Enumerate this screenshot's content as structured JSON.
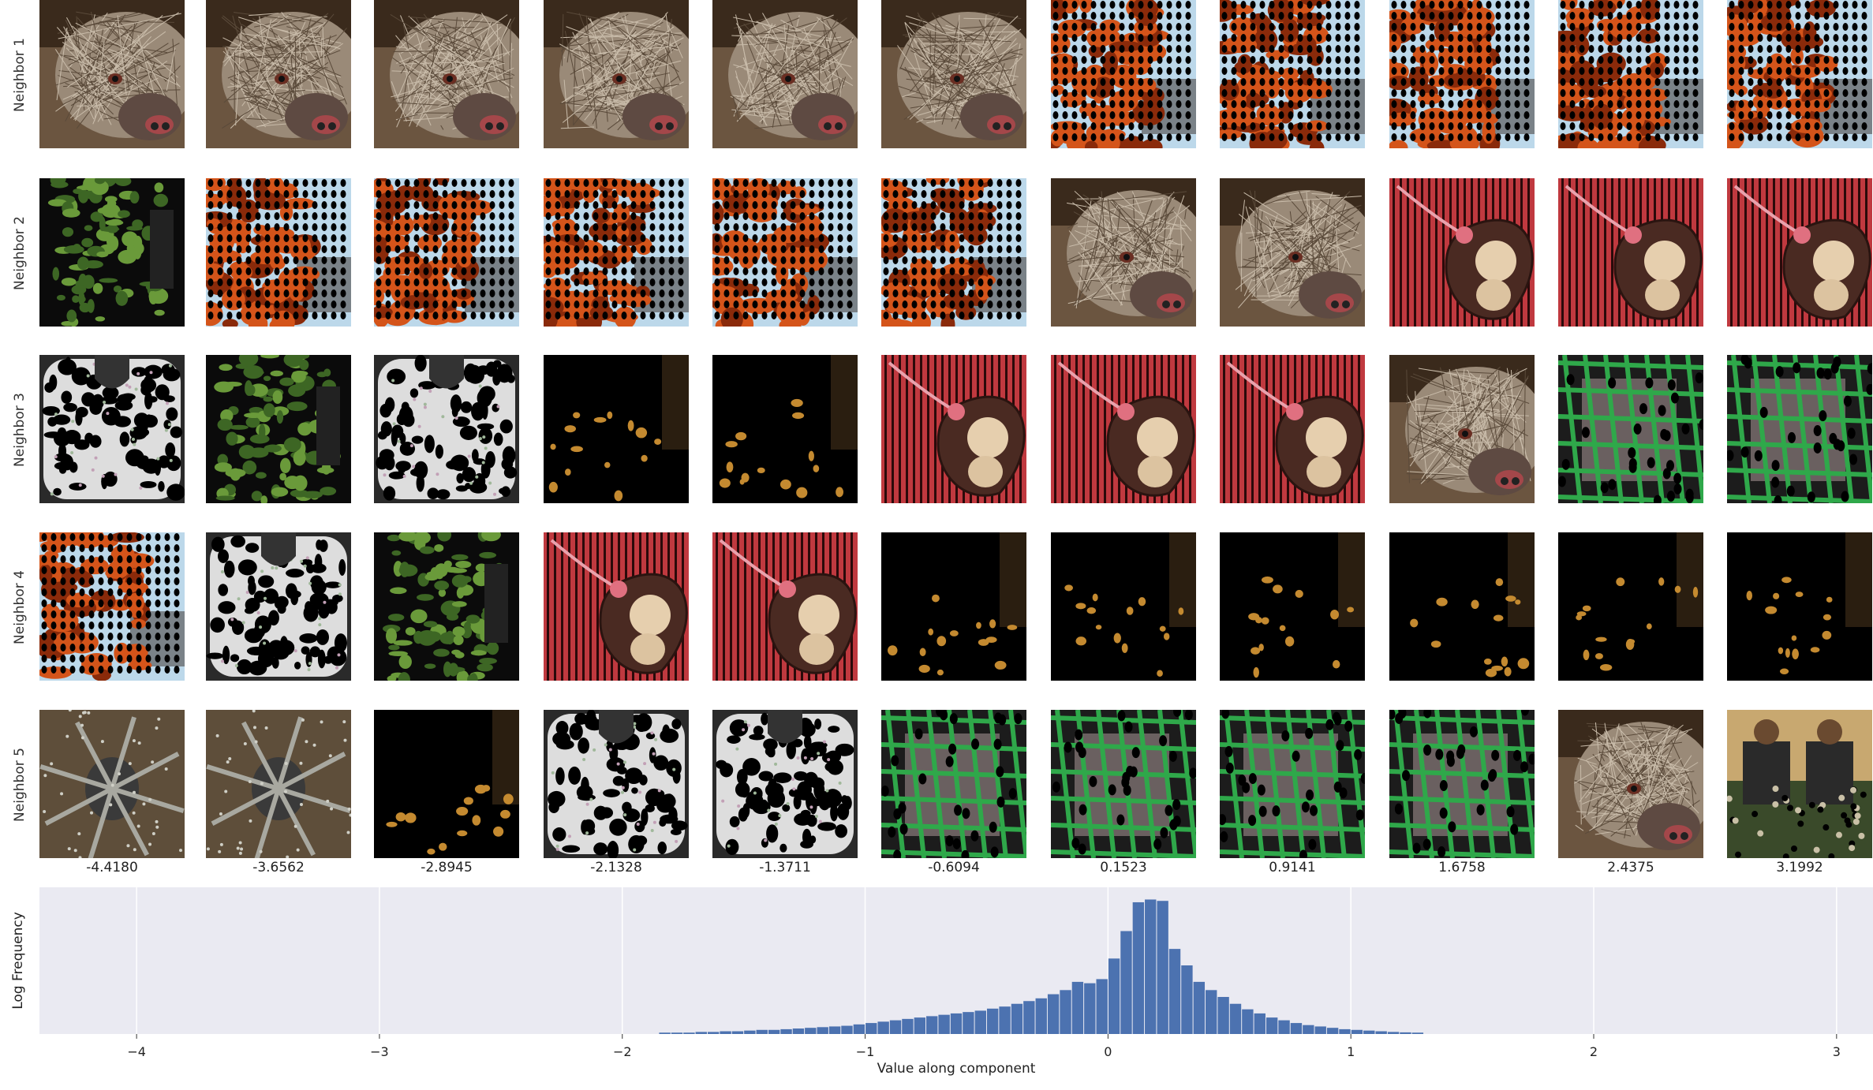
{
  "chart_data": [
    {
      "type": "image-grid",
      "row_labels": [
        "Neighbor 1",
        "Neighbor 2",
        "Neighbor 3",
        "Neighbor 4",
        "Neighbor 5"
      ],
      "column_values": [
        "-4.4180",
        "-3.6562",
        "-2.8945",
        "-2.1328",
        "-1.3711",
        "-0.6094",
        "0.1523",
        "0.9141",
        "1.6758",
        "2.4375",
        "3.1992"
      ],
      "tiles": [
        [
          "mongoose",
          "mongoose",
          "mongoose",
          "mongoose",
          "mongoose",
          "mongoose",
          "orange-feathers",
          "orange-feathers",
          "orange-feathers",
          "orange-feathers",
          "orange-feathers"
        ],
        [
          "green-leaves",
          "orange-feathers",
          "orange-feathers",
          "orange-feathers",
          "orange-feathers",
          "orange-feathers",
          "mongoose",
          "mongoose",
          "red-heart-pendant",
          "red-heart-pendant",
          "red-heart-pendant"
        ],
        [
          "white-bib",
          "green-leaves",
          "white-bib",
          "dark-scene",
          "dark-scene",
          "red-heart-pendant",
          "red-heart-pendant",
          "red-heart-pendant",
          "mongoose",
          "green-cage",
          "green-cage"
        ],
        [
          "orange-feathers",
          "white-bib",
          "green-leaves",
          "red-heart-pendant",
          "red-heart-pendant",
          "dark-scene",
          "dark-scene",
          "dark-scene",
          "dark-scene",
          "dark-scene",
          "dark-scene"
        ],
        [
          "gray-spider",
          "gray-spider",
          "dark-scene",
          "white-bib",
          "white-bib",
          "green-cage",
          "green-cage",
          "green-cage",
          "green-cage",
          "mongoose",
          "people-collage"
        ]
      ]
    },
    {
      "type": "bar",
      "title": "",
      "xlabel": "Value along component",
      "ylabel": "Log Frequency",
      "xlim": [
        -4.4,
        3.15
      ],
      "xticks": [
        "−4",
        "−3",
        "−2",
        "−1",
        "0",
        "1",
        "2",
        "3"
      ],
      "grid": true,
      "bar_color": "#4c72b0",
      "background": "#eaeaf2",
      "bins": [
        -1.85,
        -1.8,
        -1.75,
        -1.7,
        -1.65,
        -1.6,
        -1.55,
        -1.5,
        -1.45,
        -1.4,
        -1.35,
        -1.3,
        -1.25,
        -1.2,
        -1.15,
        -1.1,
        -1.05,
        -1.0,
        -0.95,
        -0.9,
        -0.85,
        -0.8,
        -0.75,
        -0.7,
        -0.65,
        -0.6,
        -0.55,
        -0.5,
        -0.45,
        -0.4,
        -0.35,
        -0.3,
        -0.25,
        -0.2,
        -0.15,
        -0.1,
        -0.05,
        0.0,
        0.05,
        0.1,
        0.15,
        0.2,
        0.25,
        0.3,
        0.35,
        0.4,
        0.45,
        0.5,
        0.55,
        0.6,
        0.65,
        0.7,
        0.75,
        0.8,
        0.85,
        0.9,
        0.95,
        1.0,
        1.05,
        1.1,
        1.15,
        1.2,
        1.25
      ],
      "values": [
        0.01,
        0.01,
        0.01,
        0.015,
        0.015,
        0.02,
        0.02,
        0.025,
        0.03,
        0.03,
        0.035,
        0.04,
        0.045,
        0.05,
        0.055,
        0.06,
        0.07,
        0.08,
        0.09,
        0.1,
        0.11,
        0.12,
        0.13,
        0.14,
        0.15,
        0.16,
        0.17,
        0.185,
        0.2,
        0.22,
        0.24,
        0.26,
        0.29,
        0.32,
        0.38,
        0.37,
        0.4,
        0.55,
        0.75,
        0.96,
        0.98,
        0.97,
        0.62,
        0.5,
        0.38,
        0.32,
        0.27,
        0.22,
        0.18,
        0.15,
        0.12,
        0.1,
        0.08,
        0.065,
        0.055,
        0.045,
        0.035,
        0.03,
        0.025,
        0.02,
        0.015,
        0.012,
        0.01
      ]
    }
  ]
}
